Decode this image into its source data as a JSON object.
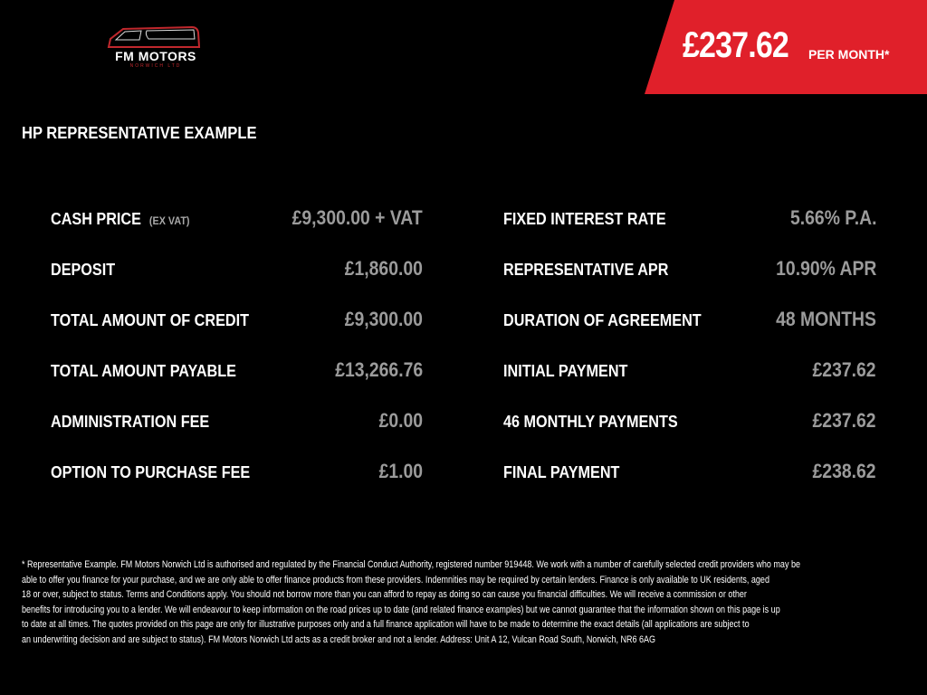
{
  "brand": {
    "name": "FM MOTORS",
    "sub": "NORWICH LTD",
    "accent": "#e0202a"
  },
  "banner": {
    "price": "£237.62",
    "suffix": "PER MONTH*"
  },
  "heading": "HP REPRESENTATIVE EXAMPLE",
  "left": [
    {
      "label": "CASH PRICE",
      "note": "(EX VAT)",
      "value": "£9,300.00 + VAT"
    },
    {
      "label": "DEPOSIT",
      "value": "£1,860.00"
    },
    {
      "label": "TOTAL AMOUNT OF CREDIT",
      "value": "£9,300.00"
    },
    {
      "label": "TOTAL AMOUNT PAYABLE",
      "value": "£13,266.76"
    },
    {
      "label": "ADMINISTRATION FEE",
      "value": "£0.00"
    },
    {
      "label": "OPTION TO PURCHASE FEE",
      "value": "£1.00"
    }
  ],
  "right": [
    {
      "label": "FIXED INTEREST RATE",
      "value": "5.66% P.A."
    },
    {
      "label": "REPRESENTATIVE APR",
      "value": "10.90% APR"
    },
    {
      "label": "DURATION OF AGREEMENT",
      "value": "48 MONTHS"
    },
    {
      "label": "INITIAL PAYMENT",
      "value": "£237.62"
    },
    {
      "label": "46 MONTHLY PAYMENTS",
      "value": "£237.62"
    },
    {
      "label": "FINAL PAYMENT",
      "value": "£238.62"
    }
  ],
  "disclaimer": [
    "* Representative Example. FM Motors Norwich Ltd is authorised and regulated by the Financial Conduct Authority, registered number 919448. We work with a number of carefully selected credit providers who may be",
    "able to offer you finance for your purchase, and we are only able to offer finance products from these providers. Indemnities may be required by certain lenders. Finance is only available to UK residents, aged",
    "18 or over, subject to status. Terms and Conditions apply. You should not borrow more than you can afford to repay as doing so can cause you financial difficulties. We will receive a commission or other",
    "benefits for introducing you to a lender. We will endeavour to keep information on the road prices up to date (and related finance examples) but we cannot guarantee that the information shown on this page is up",
    "to date at all times. The quotes provided on this page are only for illustrative purposes only and a full finance application will have to be made to determine the exact details (all applications are subject to",
    "an underwriting decision and are subject to status). FM Motors Norwich Ltd acts as a credit broker and not a lender. Address: Unit  A 12, Vulcan Road South, Norwich, NR6 6AG"
  ]
}
